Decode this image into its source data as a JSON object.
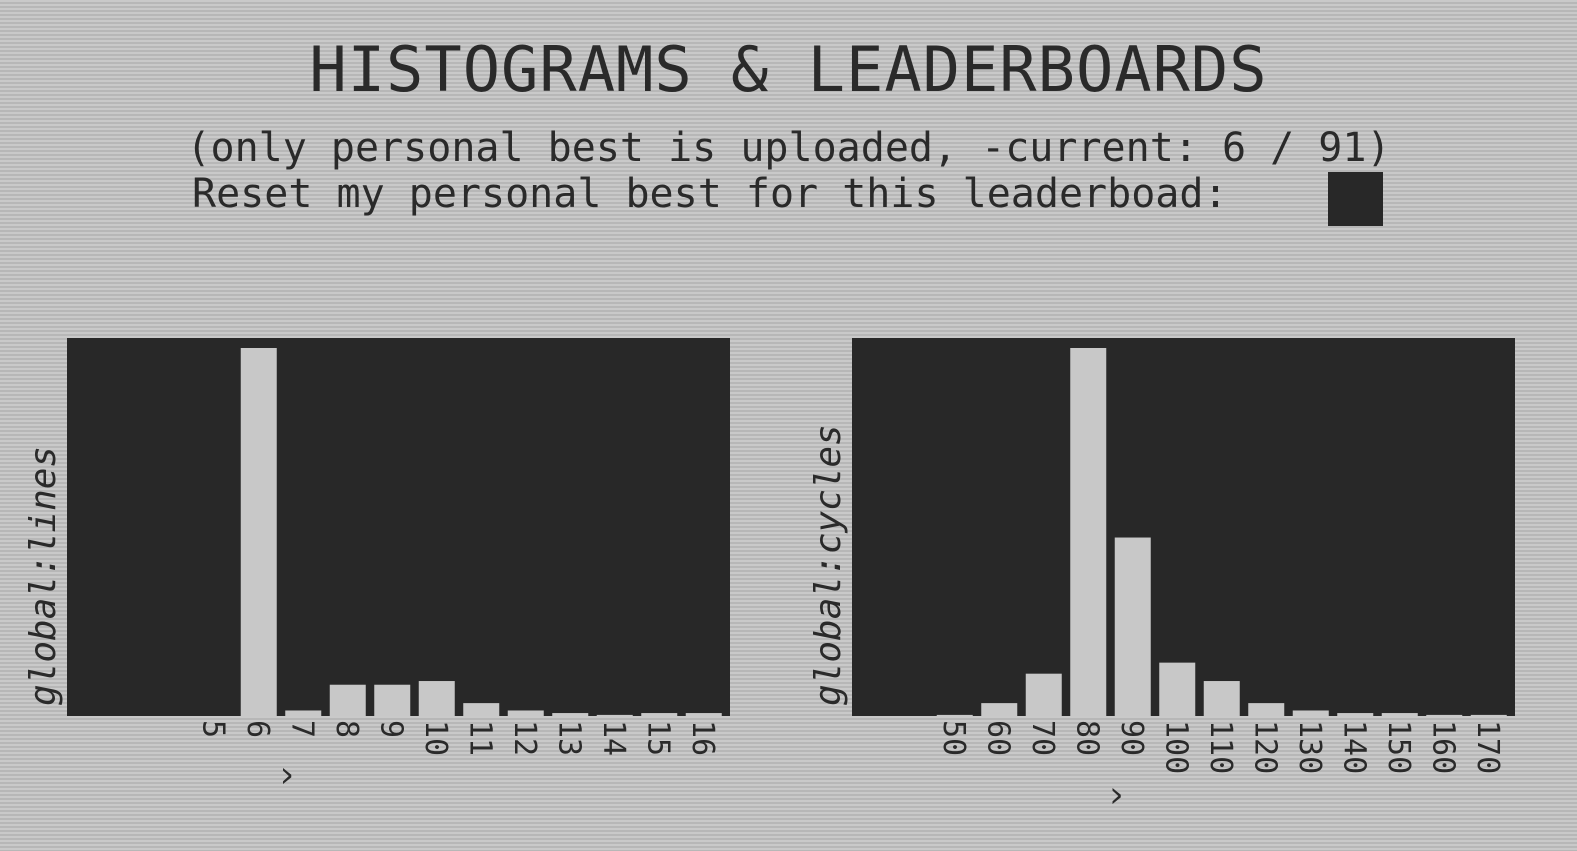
{
  "header": {
    "title": "HISTOGRAMS & LEADERBOARDS",
    "subtitle": "(only personal best is uploaded, -current: 6 / 91)",
    "reset_label": "Reset my personal best for this leaderboad:"
  },
  "colors": {
    "background": "#c2c2c2",
    "plot_background": "#282828",
    "bar": "#c8c8c8",
    "text": "#2a2a2a"
  },
  "chart_data": [
    {
      "type": "bar",
      "ylabel": "global:lines",
      "categories": [
        "5",
        "6",
        "7",
        "8",
        "9",
        "10",
        "11",
        "12",
        "13",
        "14",
        "15",
        "16"
      ],
      "values": [
        0,
        100,
        1.5,
        8.5,
        8.5,
        9.5,
        3.5,
        1.5,
        0.8,
        0.3,
        0.8,
        0.8
      ],
      "ylim": [
        0,
        100
      ],
      "current_marker": "^",
      "current_category": "6"
    },
    {
      "type": "bar",
      "ylabel": "global:cycles",
      "categories": [
        "50",
        "60",
        "70",
        "80",
        "90",
        "100",
        "110",
        "120",
        "130",
        "140",
        "150",
        "160",
        "170"
      ],
      "values": [
        0.3,
        3.5,
        11.5,
        100,
        48.5,
        14.5,
        9.5,
        3.5,
        1.5,
        0.8,
        0.8,
        0.3,
        0.3
      ],
      "ylim": [
        0,
        100
      ],
      "current_marker": "^",
      "current_category": "80"
    }
  ]
}
